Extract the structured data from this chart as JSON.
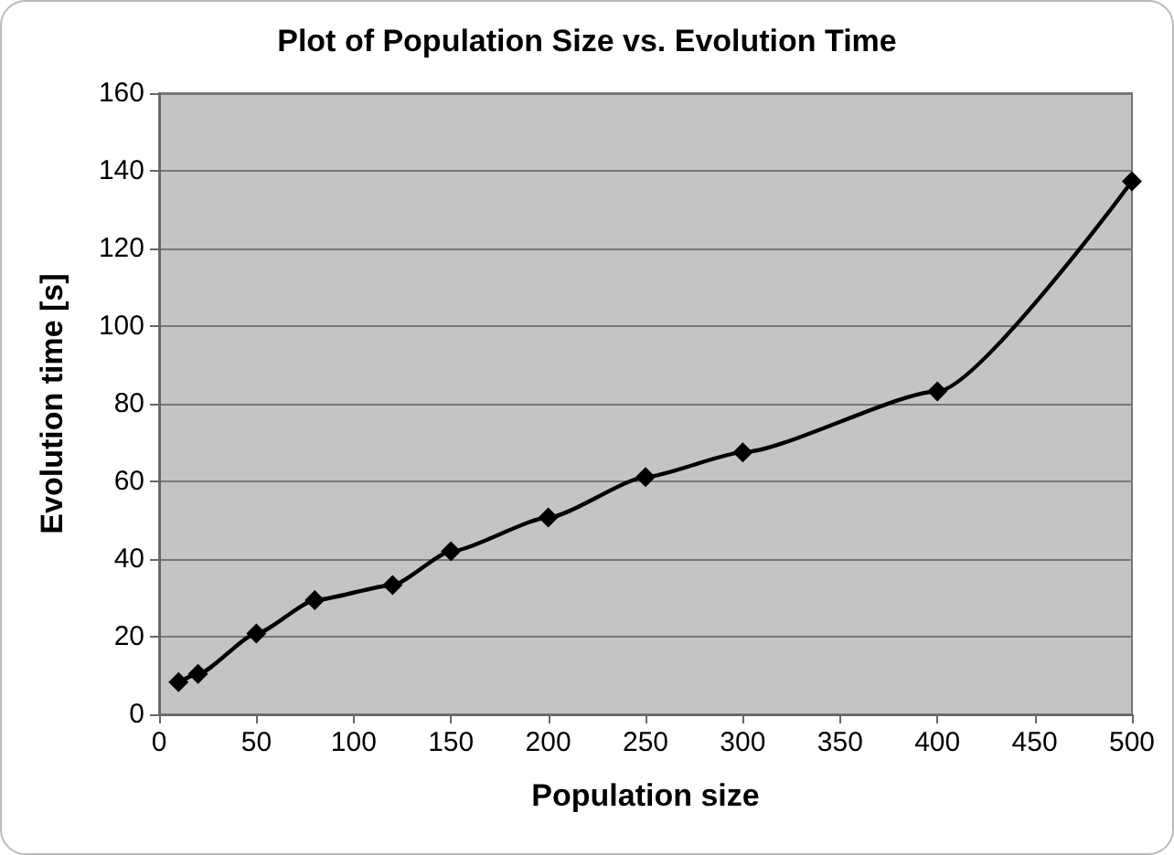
{
  "chart_data": {
    "type": "line",
    "title": "Plot of Population Size vs. Evolution Time",
    "xlabel": "Population size",
    "ylabel": "Evolution time [s]",
    "x": [
      10,
      20,
      50,
      80,
      120,
      150,
      200,
      250,
      300,
      400,
      500
    ],
    "series": [
      {
        "color": "#000000",
        "values": [
          8.3,
          10.4,
          20.8,
          29.4,
          33.3,
          42,
          50.7,
          61.1,
          67.5,
          83.2,
          137.3
        ]
      }
    ],
    "xlim": [
      0,
      500
    ],
    "xticks": [
      0,
      50,
      100,
      150,
      200,
      250,
      300,
      350,
      400,
      450,
      500
    ],
    "ylim": [
      0,
      160
    ],
    "yticks": [
      0,
      20,
      40,
      60,
      80,
      100,
      120,
      140,
      160
    ],
    "grid": "y",
    "marker": "diamond"
  }
}
